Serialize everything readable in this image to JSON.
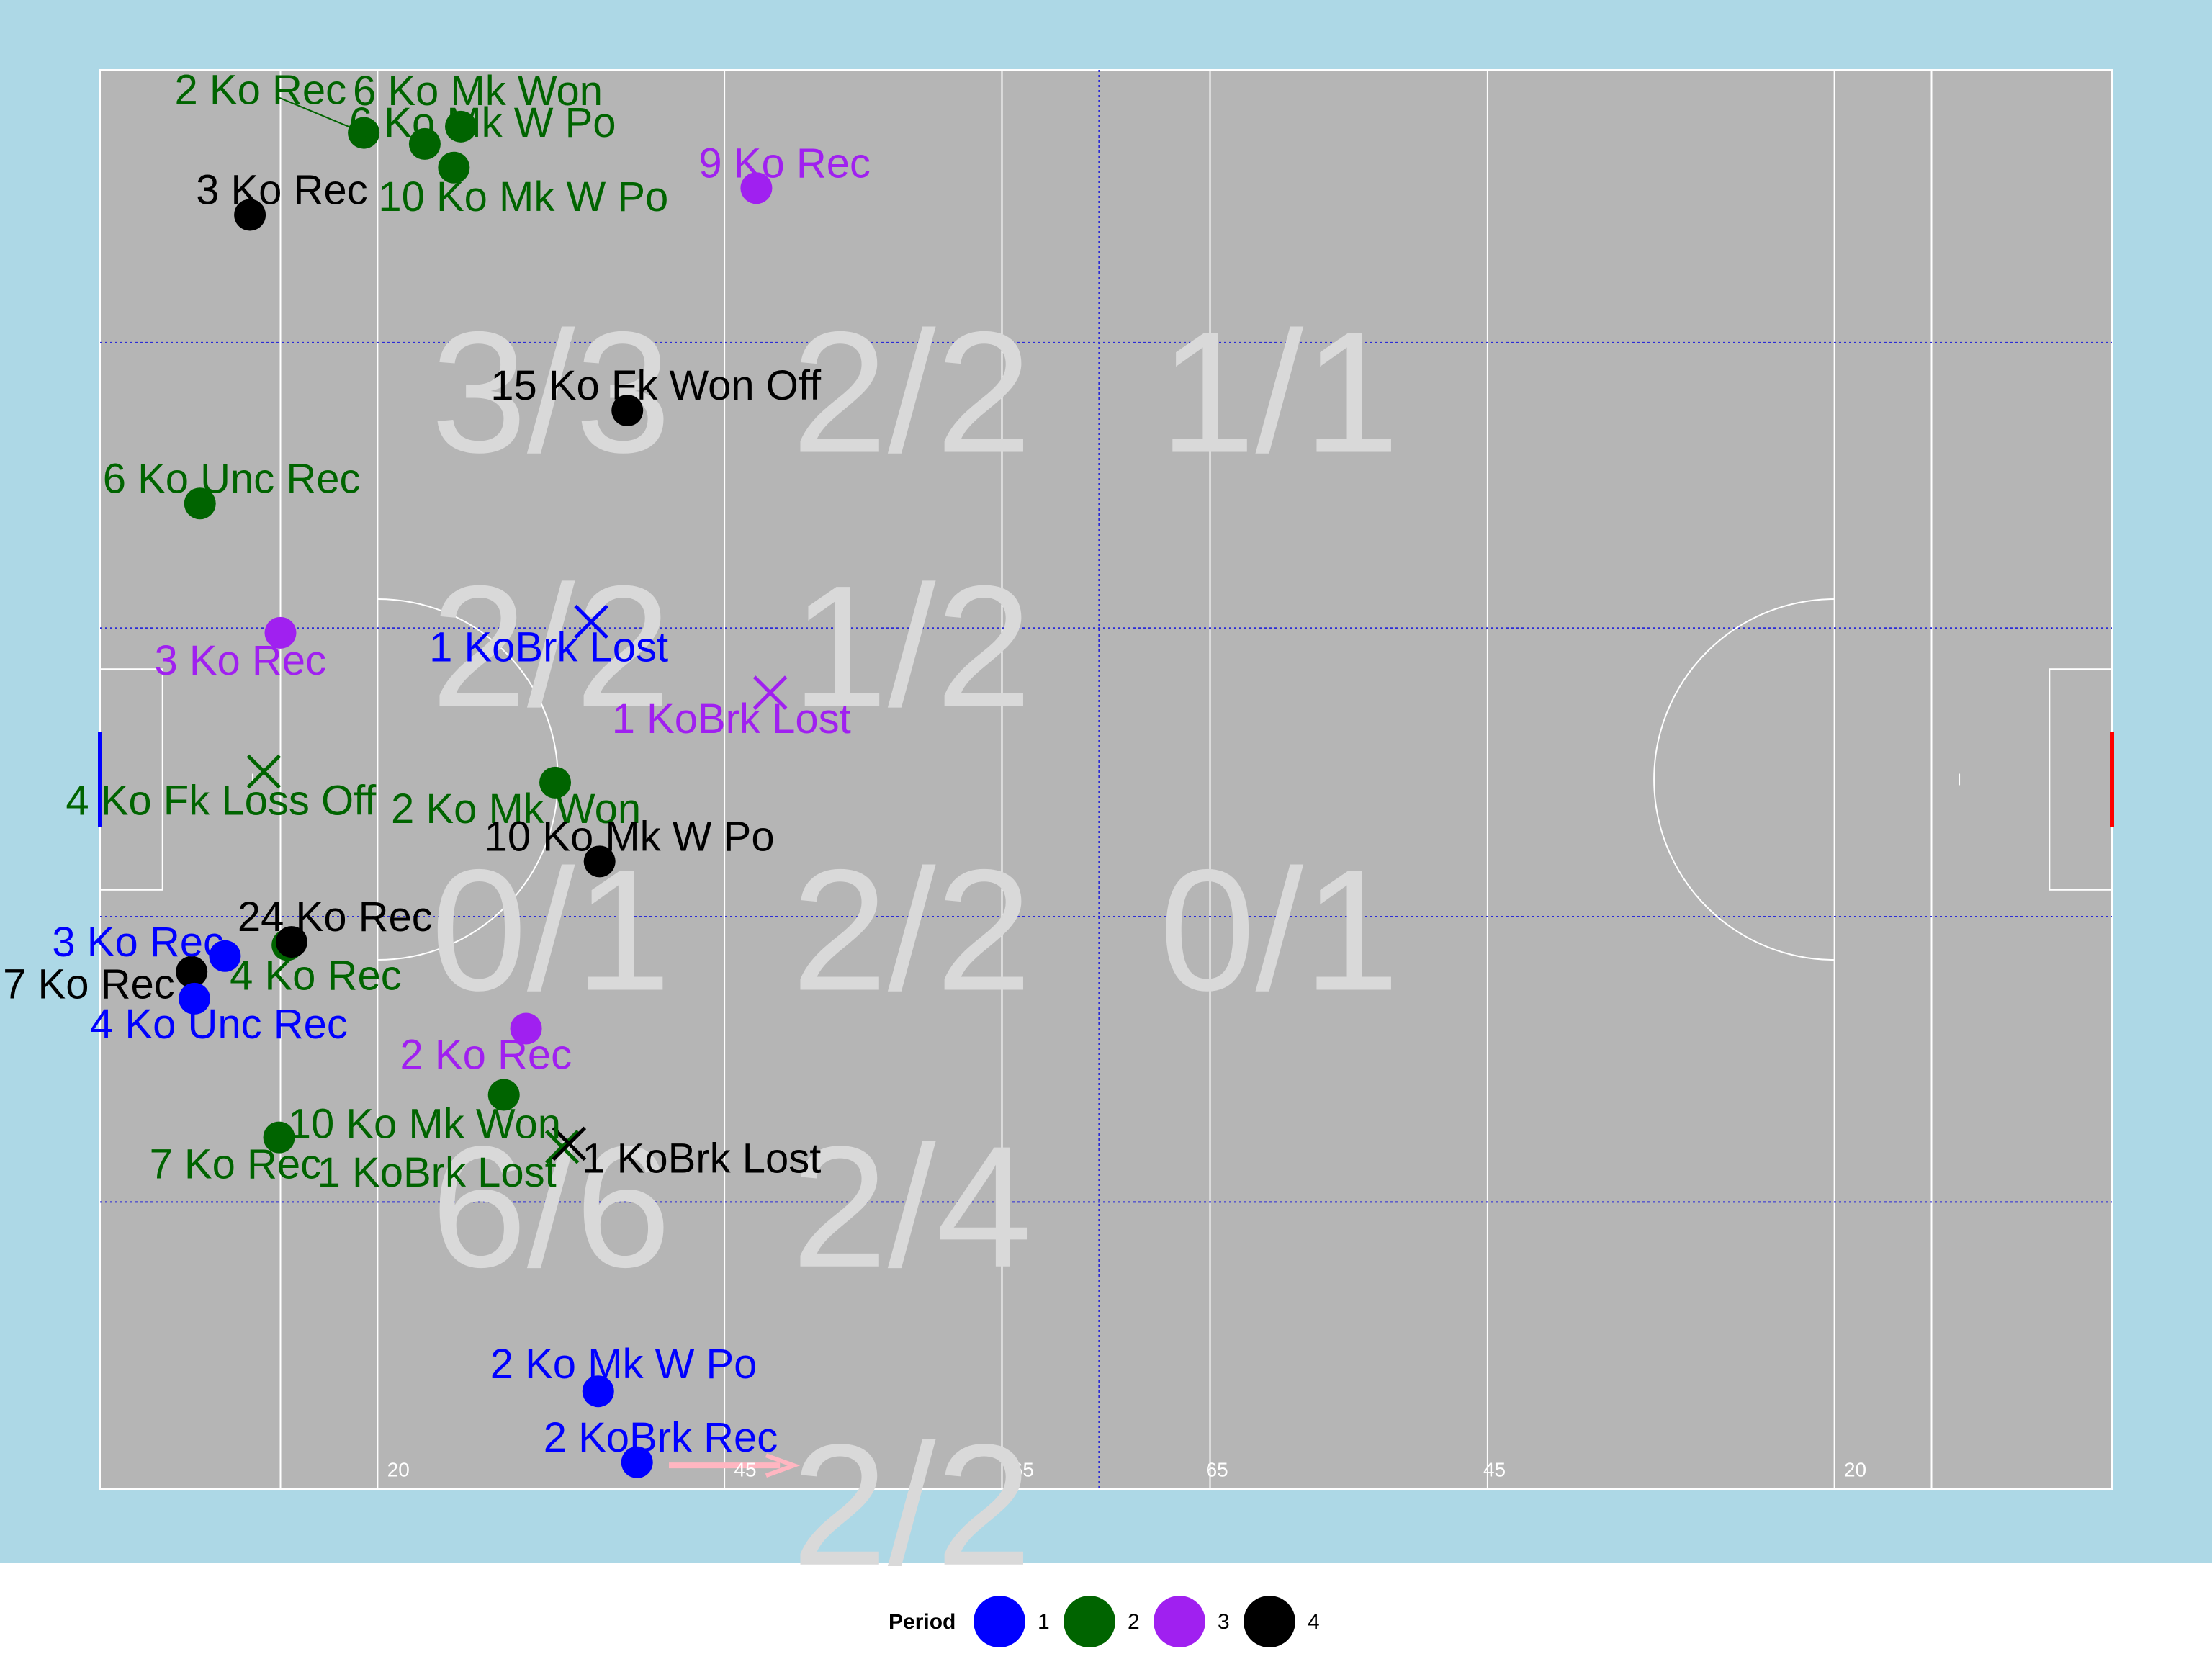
{
  "chart_data": {
    "type": "scatter",
    "colors": {
      "1": "#0000ff",
      "2": "#006400",
      "3": "#a020f0",
      "4": "#000000",
      "background": "#add8e6",
      "pitch": "#b5b5b5"
    },
    "distance_labels": [
      "20",
      "45",
      "65",
      "65",
      "45",
      "20"
    ],
    "zone_ratios": [
      {
        "col": 0,
        "row": 0,
        "text": "3/3"
      },
      {
        "col": 1,
        "row": 0,
        "text": "2/2"
      },
      {
        "col": 2,
        "row": 0,
        "text": "1/1"
      },
      {
        "col": 0,
        "row": 1,
        "text": "2/2"
      },
      {
        "col": 1,
        "row": 1,
        "text": "1/2"
      },
      {
        "col": 0,
        "row": 2,
        "text": "0/1"
      },
      {
        "col": 1,
        "row": 2,
        "text": "2/2"
      },
      {
        "col": 2,
        "row": 2,
        "text": "0/1"
      },
      {
        "col": 0,
        "row": 3,
        "text": "6/6"
      },
      {
        "col": 1,
        "row": 3,
        "text": "2/4"
      },
      {
        "col": 1,
        "row": 4,
        "text": "2/2"
      }
    ],
    "points": [
      {
        "x": 19.0,
        "y": 86.0,
        "period": 2,
        "marker": "dot",
        "label": "2 Ko Rec"
      },
      {
        "x": 23.4,
        "y": 85.3,
        "period": 2,
        "marker": "dot",
        "label": "6 Ko Mk W Po"
      },
      {
        "x": 26.0,
        "y": 86.4,
        "period": 2,
        "marker": "dot",
        "label": "6 Ko Mk Won"
      },
      {
        "x": 25.5,
        "y": 83.8,
        "period": 2,
        "marker": "dot",
        "label": "10 Ko Mk W Po"
      },
      {
        "x": 10.8,
        "y": 80.8,
        "period": 4,
        "marker": "dot",
        "label": "3 Ko Rec"
      },
      {
        "x": 47.3,
        "y": 82.5,
        "period": 3,
        "marker": "dot",
        "label": "9 Ko Rec"
      },
      {
        "x": 38.0,
        "y": 68.4,
        "period": 4,
        "marker": "dot",
        "label": "15 Ko Fk Won Off"
      },
      {
        "x": 7.2,
        "y": 62.5,
        "period": 2,
        "marker": "dot",
        "label": "6 Ko Unc Rec"
      },
      {
        "x": 13.0,
        "y": 54.3,
        "period": 3,
        "marker": "dot",
        "label": "3 Ko Rec"
      },
      {
        "x": 35.4,
        "y": 55.0,
        "period": 1,
        "marker": "cross",
        "label": "1 KoBrk Lost"
      },
      {
        "x": 48.3,
        "y": 50.5,
        "period": 3,
        "marker": "cross",
        "label": "1 KoBrk Lost"
      },
      {
        "x": 11.8,
        "y": 45.5,
        "period": 2,
        "marker": "cross",
        "label": "4 Ko Fk Loss Off"
      },
      {
        "x": 32.8,
        "y": 44.8,
        "period": 2,
        "marker": "dot",
        "label": "2 Ko Mk Won"
      },
      {
        "x": 36.0,
        "y": 39.8,
        "period": 4,
        "marker": "dot",
        "label": "10 Ko Mk W Po"
      },
      {
        "x": 13.5,
        "y": 34.5,
        "period": 2,
        "marker": "dot",
        "label": "4 Ko Rec"
      },
      {
        "x": 9.0,
        "y": 33.8,
        "period": 1,
        "marker": "dot",
        "label": "3 Ko Rec"
      },
      {
        "x": 13.8,
        "y": 34.7,
        "period": 4,
        "marker": "dot",
        "label": "24 Ko Rec"
      },
      {
        "x": 6.6,
        "y": 32.8,
        "period": 4,
        "marker": "dot",
        "label": "7 Ko Rec"
      },
      {
        "x": 6.8,
        "y": 31.1,
        "period": 1,
        "marker": "dot",
        "label": "4 Ko Unc Rec"
      },
      {
        "x": 30.7,
        "y": 29.2,
        "period": 3,
        "marker": "dot",
        "label": "2 Ko Rec"
      },
      {
        "x": 29.1,
        "y": 25.0,
        "period": 2,
        "marker": "dot",
        "label": "10 Ko Mk Won"
      },
      {
        "x": 12.9,
        "y": 22.3,
        "period": 2,
        "marker": "dot",
        "label": "7 Ko Rec"
      },
      {
        "x": 33.3,
        "y": 21.7,
        "period": 2,
        "marker": "cross",
        "label": "1 KoBrk Lost"
      },
      {
        "x": 33.8,
        "y": 21.9,
        "period": 4,
        "marker": "cross",
        "label": "1 KoBrk Lost"
      },
      {
        "x": 35.9,
        "y": 6.2,
        "period": 1,
        "marker": "dot",
        "label": "2 Ko Mk W Po"
      },
      {
        "x": 38.7,
        "y": 1.7,
        "period": 1,
        "marker": "dot",
        "label": "2 KoBrk Rec"
      }
    ],
    "legend": {
      "title": "Period",
      "items": [
        "1",
        "2",
        "3",
        "4"
      ],
      "position": "bottom"
    }
  }
}
